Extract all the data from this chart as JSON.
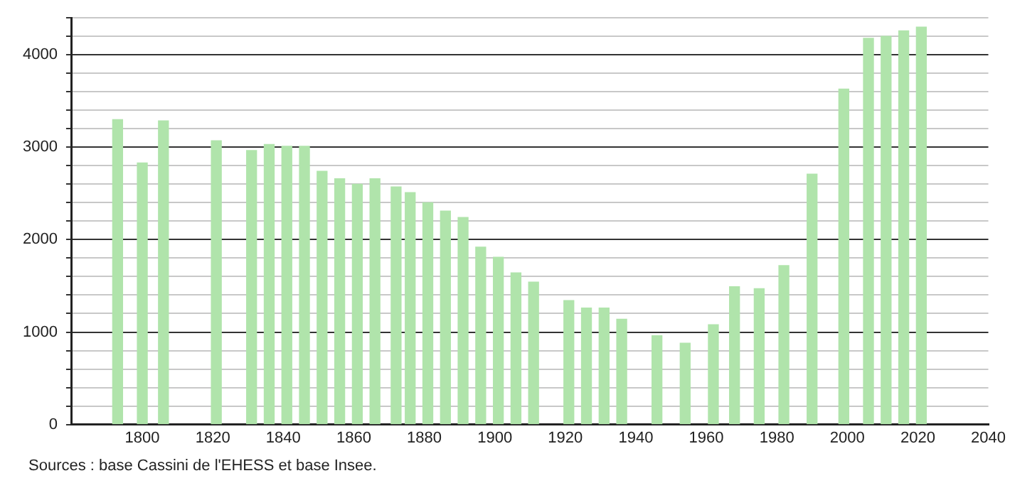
{
  "chart_data": {
    "type": "bar",
    "x": [
      1793,
      1800,
      1806,
      1821,
      1831,
      1836,
      1841,
      1846,
      1851,
      1856,
      1861,
      1866,
      1872,
      1876,
      1881,
      1886,
      1891,
      1896,
      1901,
      1906,
      1911,
      1921,
      1926,
      1931,
      1936,
      1946,
      1954,
      1962,
      1968,
      1975,
      1982,
      1990,
      1999,
      2006,
      2011,
      2016,
      2021
    ],
    "values": [
      3300,
      2830,
      3285,
      3070,
      2965,
      3030,
      3010,
      3010,
      2740,
      2660,
      2600,
      2660,
      2570,
      2510,
      2400,
      2310,
      2240,
      1920,
      1810,
      1640,
      1540,
      1340,
      1260,
      1260,
      1140,
      960,
      880,
      1080,
      1490,
      1470,
      1720,
      2710,
      3630,
      4180,
      4200,
      4260,
      4300
    ],
    "color": "#b0e4ab",
    "xlim": [
      1780,
      2040
    ],
    "xticks": [
      1800,
      1820,
      1840,
      1860,
      1880,
      1900,
      1920,
      1940,
      1960,
      1980,
      2000,
      2020,
      2040
    ],
    "ylim": [
      0,
      4400
    ],
    "yticks": [
      0,
      {
        "value": 200,
        "label": null
      },
      {
        "value": 400,
        "label": null
      },
      {
        "value": 600,
        "label": null
      },
      {
        "value": 800,
        "label": null
      },
      1000,
      {
        "value": 1200,
        "label": null
      },
      {
        "value": 1400,
        "label": null
      },
      {
        "value": 1600,
        "label": null
      },
      {
        "value": 1800,
        "label": null
      },
      2000,
      {
        "value": 2200,
        "label": null
      },
      {
        "value": 2400,
        "label": null
      },
      {
        "value": 2600,
        "label": null
      },
      {
        "value": 2800,
        "label": null
      },
      3000,
      {
        "value": 3200,
        "label": null
      },
      {
        "value": 3400,
        "label": null
      },
      {
        "value": 3600,
        "label": null
      },
      {
        "value": 3800,
        "label": null
      },
      4000,
      {
        "value": 4200,
        "label": null
      },
      {
        "value": 4400,
        "label": null
      }
    ],
    "grid": "y",
    "legend": false,
    "annotations": [
      "Sources : base Cassini de l'EHESS et base Insee."
    ]
  }
}
